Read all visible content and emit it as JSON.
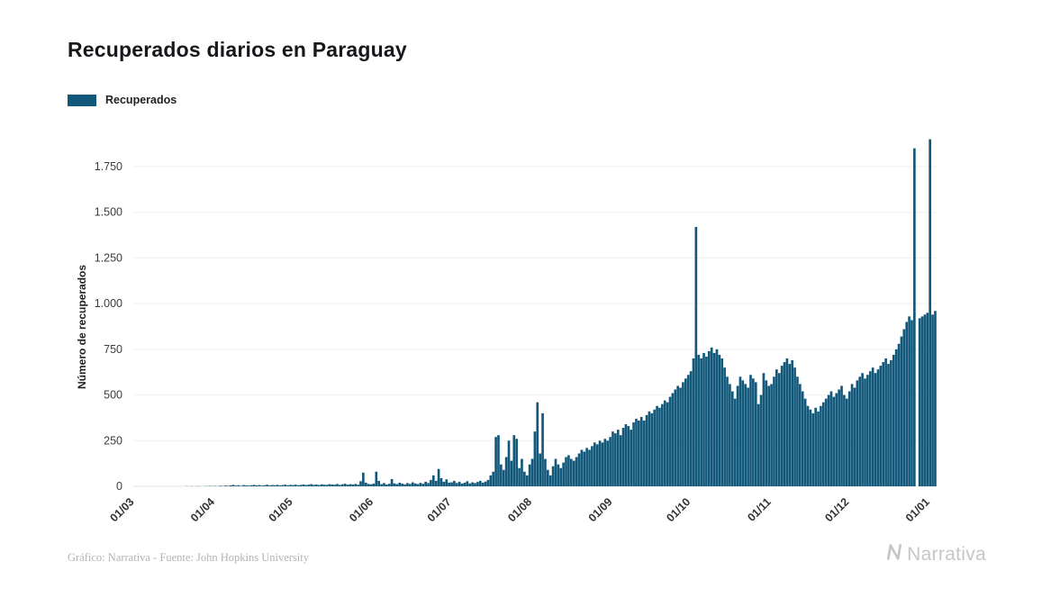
{
  "page": {
    "title": "Recuperados diarios en Paraguay",
    "credit": "Gráfico: Narrativa - Fuente: John Hopkins University",
    "brand": "Narrativa"
  },
  "legend": {
    "label": "Recuperados",
    "color": "#12587a"
  },
  "chart_data": {
    "type": "bar",
    "title": "Recuperados diarios en Paraguay",
    "series_name": "Recuperados",
    "ylabel": "Número de recuperados",
    "bar_color": "#12587a",
    "grid": true,
    "legend_position": "top-left",
    "ylim": [
      0,
      1900
    ],
    "y_ticks": [
      0,
      250,
      500,
      750,
      1000,
      1250,
      1500,
      1750
    ],
    "y_tick_labels": [
      "0",
      "250",
      "500",
      "750",
      "1.000",
      "1.250",
      "1.500",
      "1.750"
    ],
    "x_tick_labels": [
      "01/03",
      "01/04",
      "01/05",
      "01/06",
      "01/07",
      "01/08",
      "01/09",
      "01/10",
      "01/11",
      "01/12",
      "01/01"
    ],
    "x_tick_day_index": [
      0,
      31,
      61,
      92,
      122,
      153,
      184,
      214,
      245,
      275,
      306
    ],
    "x_start": "01/03",
    "values": [
      0,
      0,
      0,
      0,
      0,
      0,
      0,
      0,
      0,
      0,
      0,
      0,
      0,
      0,
      0,
      0,
      0,
      0,
      0,
      0,
      1,
      0,
      1,
      0,
      1,
      1,
      0,
      1,
      1,
      2,
      1,
      2,
      1,
      3,
      2,
      4,
      3,
      5,
      8,
      4,
      6,
      3,
      7,
      5,
      4,
      6,
      8,
      5,
      7,
      4,
      6,
      9,
      5,
      7,
      6,
      8,
      5,
      7,
      9,
      6,
      8,
      7,
      9,
      6,
      8,
      10,
      7,
      9,
      12,
      8,
      10,
      7,
      11,
      9,
      8,
      12,
      10,
      9,
      13,
      8,
      11,
      14,
      9,
      12,
      10,
      13,
      9,
      28,
      75,
      20,
      13,
      11,
      15,
      80,
      30,
      12,
      18,
      10,
      14,
      40,
      16,
      12,
      20,
      15,
      11,
      18,
      13,
      22,
      16,
      12,
      19,
      14,
      25,
      18,
      35,
      60,
      30,
      95,
      45,
      25,
      38,
      20,
      22,
      30,
      18,
      25,
      15,
      20,
      28,
      16,
      22,
      18,
      24,
      30,
      20,
      26,
      35,
      60,
      80,
      270,
      280,
      120,
      90,
      160,
      250,
      140,
      280,
      260,
      100,
      150,
      80,
      60,
      120,
      150,
      300,
      460,
      180,
      400,
      150,
      90,
      60,
      110,
      150,
      120,
      100,
      130,
      160,
      170,
      150,
      140,
      160,
      180,
      200,
      190,
      210,
      200,
      220,
      240,
      230,
      250,
      240,
      260,
      250,
      270,
      300,
      290,
      310,
      280,
      320,
      340,
      330,
      310,
      350,
      370,
      360,
      380,
      360,
      390,
      410,
      400,
      420,
      440,
      430,
      450,
      470,
      460,
      490,
      510,
      530,
      550,
      540,
      570,
      590,
      610,
      630,
      700,
      1420,
      720,
      700,
      730,
      710,
      740,
      760,
      730,
      750,
      720,
      700,
      650,
      600,
      560,
      520,
      480,
      550,
      600,
      580,
      560,
      540,
      610,
      590,
      570,
      450,
      500,
      620,
      580,
      550,
      560,
      600,
      640,
      620,
      660,
      680,
      700,
      670,
      690,
      650,
      600,
      560,
      520,
      480,
      440,
      420,
      400,
      430,
      410,
      440,
      460,
      480,
      500,
      520,
      490,
      510,
      530,
      550,
      500,
      480,
      520,
      560,
      540,
      580,
      600,
      620,
      590,
      610,
      630,
      650,
      620,
      640,
      660,
      680,
      700,
      670,
      690,
      720,
      750,
      780,
      820,
      860,
      900,
      930,
      910,
      1850,
      0,
      920,
      930,
      940,
      950,
      1900,
      940,
      960
    ]
  }
}
